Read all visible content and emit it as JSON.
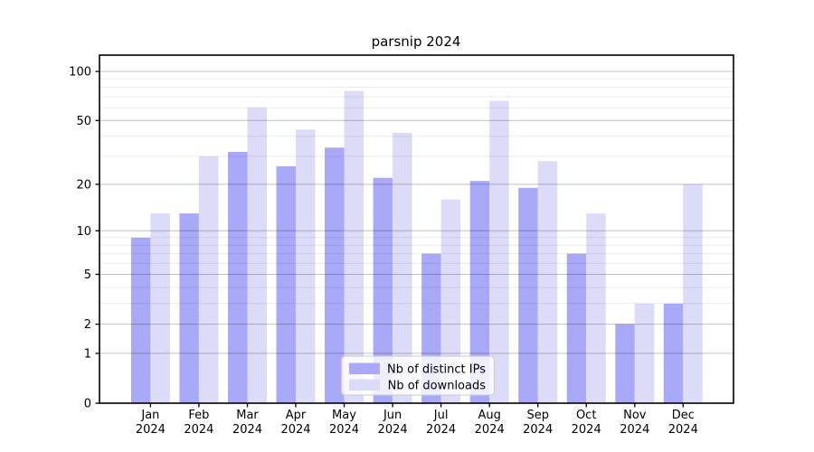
{
  "chart_data": {
    "type": "bar",
    "title": "parsnip 2024",
    "categories": [
      "Jan 2024",
      "Feb 2024",
      "Mar 2024",
      "Apr 2024",
      "May 2024",
      "Jun 2024",
      "Jul 2024",
      "Aug 2024",
      "Sep 2024",
      "Oct 2024",
      "Nov 2024",
      "Dec 2024"
    ],
    "series": [
      {
        "name": "Nb of distinct IPs",
        "color": "#a9a9f7",
        "values": [
          9,
          13,
          32,
          26,
          34,
          22,
          7,
          21,
          19,
          7,
          2,
          3
        ]
      },
      {
        "name": "Nb of downloads",
        "color": "#dcdcf8",
        "values": [
          13,
          30,
          60,
          44,
          76,
          42,
          16,
          66,
          28,
          13,
          3,
          20
        ]
      }
    ],
    "yscale": "log1p",
    "ylim": [
      0,
      126
    ],
    "yticks": [
      "0",
      "1",
      "2",
      "5",
      "10",
      "20",
      "50",
      "100"
    ],
    "minor_yticks": [
      3,
      4,
      6,
      7,
      8,
      9,
      30,
      40,
      60,
      70,
      80,
      90
    ],
    "grid": "on",
    "legend_position": "inside-bottom-center",
    "frame_color": "#000000",
    "major_grid_color": "rgba(0,0,0,0.24)",
    "minor_grid_color": "rgba(0,0,0,0.08)",
    "text_color": "#000000",
    "legend_border_color": "#cccccc"
  }
}
